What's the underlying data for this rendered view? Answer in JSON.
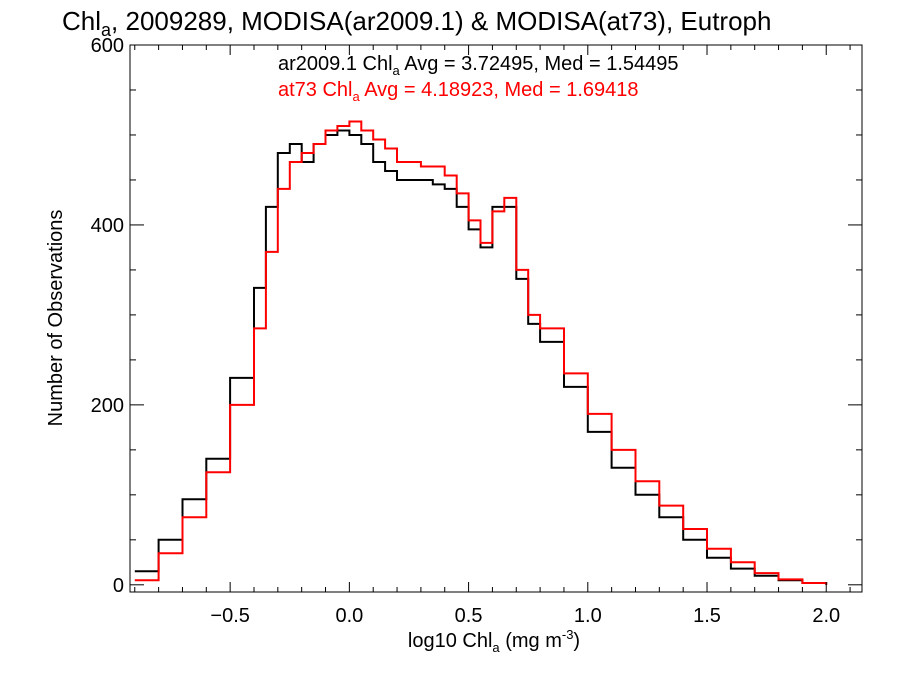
{
  "chart_data": {
    "type": "line",
    "title": {
      "p1": "Chl",
      "p1_sub": "a",
      "p2": ", 2009289, MODISA(ar2009.1) & MODISA(at73), Eutroph"
    },
    "xlabel": {
      "p1": "log10 Chl",
      "p1_sub": "a",
      "p2": " (mg m",
      "p2_sup": "-3",
      "p3": ")"
    },
    "ylabel": "Number of Observations",
    "xlim": [
      -0.92,
      2.15
    ],
    "ylim": [
      -8,
      600
    ],
    "x_ticks": [
      -0.5,
      0.0,
      0.5,
      1.0,
      1.5,
      2.0
    ],
    "x_tick_labels": [
      "−0.5",
      "0.0",
      "0.5",
      "1.0",
      "1.5",
      "2.0"
    ],
    "y_ticks": [
      0,
      200,
      400,
      600
    ],
    "y_tick_labels": [
      "0",
      "200",
      "400",
      "600"
    ],
    "annotations": [
      {
        "p1": "ar2009.1 Chl",
        "p1_sub": "a",
        "p2": " Avg = 3.72495, Med = 1.54495",
        "color": "#000000"
      },
      {
        "p1": "at73 Chl",
        "p1_sub": "a",
        "p2": " Avg = 4.18923, Med = 1.69418",
        "color": "#ff0000"
      }
    ],
    "series": [
      {
        "color": "#000000",
        "step": true,
        "x": [
          -0.9,
          -0.8,
          -0.7,
          -0.6,
          -0.5,
          -0.4,
          -0.35,
          -0.3,
          -0.25,
          -0.2,
          -0.15,
          -0.1,
          -0.05,
          0.0,
          0.05,
          0.1,
          0.15,
          0.2,
          0.25,
          0.3,
          0.35,
          0.4,
          0.45,
          0.5,
          0.55,
          0.6,
          0.65,
          0.7,
          0.75,
          0.8,
          0.9,
          1.0,
          1.1,
          1.2,
          1.3,
          1.4,
          1.5,
          1.6,
          1.7,
          1.8,
          1.9,
          2.0
        ],
        "y": [
          15,
          50,
          95,
          140,
          230,
          330,
          420,
          480,
          490,
          470,
          490,
          500,
          505,
          500,
          490,
          470,
          460,
          450,
          450,
          450,
          445,
          440,
          420,
          395,
          375,
          420,
          420,
          340,
          290,
          270,
          220,
          170,
          130,
          100,
          75,
          50,
          30,
          18,
          10,
          5,
          2,
          0
        ]
      },
      {
        "color": "#ff0000",
        "step": true,
        "x": [
          -0.9,
          -0.8,
          -0.7,
          -0.6,
          -0.5,
          -0.4,
          -0.35,
          -0.3,
          -0.25,
          -0.2,
          -0.15,
          -0.1,
          -0.05,
          0.0,
          0.05,
          0.1,
          0.15,
          0.2,
          0.25,
          0.3,
          0.35,
          0.4,
          0.45,
          0.5,
          0.55,
          0.6,
          0.65,
          0.7,
          0.75,
          0.8,
          0.9,
          1.0,
          1.1,
          1.2,
          1.3,
          1.4,
          1.5,
          1.6,
          1.7,
          1.8,
          1.9,
          2.0
        ],
        "y": [
          5,
          35,
          75,
          125,
          200,
          285,
          370,
          440,
          470,
          480,
          490,
          505,
          510,
          515,
          505,
          495,
          485,
          470,
          470,
          465,
          465,
          455,
          435,
          405,
          380,
          415,
          430,
          350,
          300,
          285,
          235,
          190,
          150,
          115,
          88,
          62,
          40,
          25,
          13,
          6,
          2,
          0
        ]
      }
    ]
  }
}
